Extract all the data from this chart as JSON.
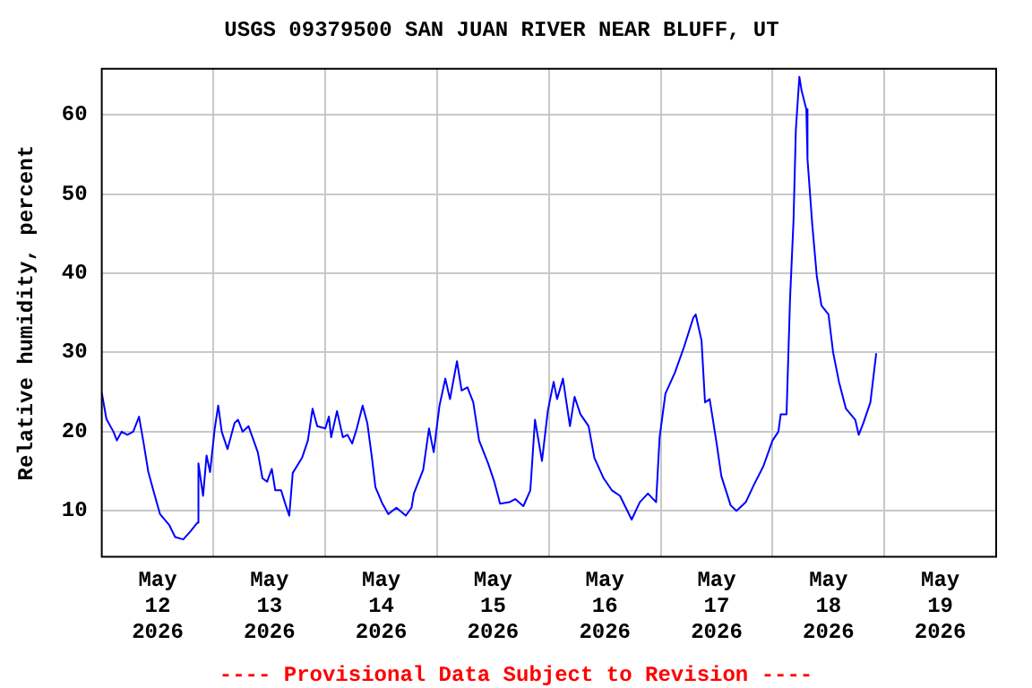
{
  "chart_data": {
    "type": "line",
    "title": "USGS 09379500 SAN JUAN RIVER NEAR BLUFF, UT",
    "ylabel": "Relative humidity, percent",
    "annotations": [
      "---- Provisional Data Subject to Revision ----"
    ],
    "x": [
      "2026-05-12T00:00",
      "2026-05-12T01:00",
      "2026-05-12T02:30",
      "2026-05-12T03:15",
      "2026-05-12T04:15",
      "2026-05-12T05:30",
      "2026-05-12T06:45",
      "2026-05-12T08:00",
      "2026-05-12T09:00",
      "2026-05-12T10:00",
      "2026-05-12T11:15",
      "2026-05-12T12:30",
      "2026-05-12T14:30",
      "2026-05-12T15:45",
      "2026-05-12T17:30",
      "2026-05-12T19:00",
      "2026-05-12T20:30",
      "2026-05-12T20:45",
      "2026-05-12T21:45",
      "2026-05-12T22:30",
      "2026-05-12T23:15",
      "2026-05-13T00:15",
      "2026-05-13T01:00",
      "2026-05-13T01:45",
      "2026-05-13T03:00",
      "2026-05-13T04:30",
      "2026-05-13T05:15",
      "2026-05-13T06:15",
      "2026-05-13T07:30",
      "2026-05-13T09:30",
      "2026-05-13T10:30",
      "2026-05-13T11:30",
      "2026-05-13T12:30",
      "2026-05-13T13:15",
      "2026-05-13T14:30",
      "2026-05-13T15:30",
      "2026-05-13T16:15",
      "2026-05-13T17:00",
      "2026-05-13T19:00",
      "2026-05-13T20:15",
      "2026-05-13T21:15",
      "2026-05-13T22:15",
      "2026-05-14T00:00",
      "2026-05-14T00:45",
      "2026-05-14T01:15",
      "2026-05-14T02:30",
      "2026-05-14T03:45",
      "2026-05-14T04:45",
      "2026-05-14T05:45",
      "2026-05-14T06:45",
      "2026-05-14T08:00",
      "2026-05-14T09:00",
      "2026-05-14T10:00",
      "2026-05-14T10:45",
      "2026-05-14T12:15",
      "2026-05-14T13:30",
      "2026-05-14T15:15",
      "2026-05-14T17:15",
      "2026-05-14T18:30",
      "2026-05-14T19:00",
      "2026-05-14T21:00",
      "2026-05-14T22:15",
      "2026-05-14T23:15",
      "2026-05-15T00:30",
      "2026-05-15T01:45",
      "2026-05-15T02:45",
      "2026-05-15T04:15",
      "2026-05-15T05:15",
      "2026-05-15T06:30",
      "2026-05-15T07:45",
      "2026-05-15T09:00",
      "2026-05-15T11:00",
      "2026-05-15T12:15",
      "2026-05-15T13:30",
      "2026-05-15T15:30",
      "2026-05-15T16:45",
      "2026-05-15T18:30",
      "2026-05-15T20:00",
      "2026-05-15T21:00",
      "2026-05-15T22:30",
      "2026-05-15T23:45",
      "2026-05-16T01:00",
      "2026-05-16T01:45",
      "2026-05-16T03:00",
      "2026-05-16T04:30",
      "2026-05-16T05:30",
      "2026-05-16T06:45",
      "2026-05-16T08:30",
      "2026-05-16T09:45",
      "2026-05-16T11:45",
      "2026-05-16T13:30",
      "2026-05-16T15:15",
      "2026-05-16T17:45",
      "2026-05-16T19:30",
      "2026-05-16T21:15",
      "2026-05-16T23:00",
      "2026-05-16T23:45",
      "2026-05-17T01:00",
      "2026-05-17T03:00",
      "2026-05-17T05:00",
      "2026-05-17T07:00",
      "2026-05-17T07:30",
      "2026-05-17T08:45",
      "2026-05-17T09:30",
      "2026-05-17T10:30",
      "2026-05-17T12:00",
      "2026-05-17T13:00",
      "2026-05-17T15:00",
      "2026-05-17T16:15",
      "2026-05-17T18:15",
      "2026-05-17T20:00",
      "2026-05-17T22:00",
      "2026-05-18T00:00",
      "2026-05-18T01:15",
      "2026-05-18T01:45",
      "2026-05-18T03:00",
      "2026-05-18T03:45",
      "2026-05-18T04:30",
      "2026-05-18T05:00",
      "2026-05-18T05:45",
      "2026-05-18T06:15",
      "2026-05-18T07:15",
      "2026-05-18T07:30",
      "2026-05-18T08:30",
      "2026-05-18T09:30",
      "2026-05-18T10:30",
      "2026-05-18T12:00",
      "2026-05-18T13:00",
      "2026-05-18T14:15",
      "2026-05-18T15:45",
      "2026-05-18T17:45",
      "2026-05-18T18:30",
      "2026-05-18T19:30",
      "2026-05-18T21:00",
      "2026-05-18T22:15"
    ],
    "series": [
      {
        "color": "#0000ff",
        "values": [
          24.9,
          21.6,
          20,
          18.9,
          20,
          19.6,
          20,
          21.9,
          18.5,
          14.9,
          12.2,
          9.6,
          8.2,
          6.7,
          6.4,
          7.4,
          8.5,
          16,
          11.9,
          17,
          14.9,
          20.4,
          23.3,
          20,
          17.8,
          21.1,
          21.5,
          20,
          20.7,
          17.4,
          14.1,
          13.7,
          15.3,
          12.6,
          12.6,
          10.7,
          9.4,
          14.8,
          16.7,
          18.9,
          22.9,
          20.7,
          20.4,
          21.9,
          19.3,
          22.6,
          19.3,
          19.6,
          18.5,
          20.4,
          23.3,
          21.1,
          16.7,
          13,
          10.9,
          9.6,
          10.4,
          9.4,
          10.4,
          12.2,
          15.2,
          20.4,
          17.4,
          23.3,
          26.7,
          24.1,
          28.9,
          25.2,
          25.6,
          23.7,
          18.9,
          15.9,
          13.7,
          10.9,
          11.1,
          11.5,
          10.6,
          12.6,
          21.5,
          16.3,
          22.6,
          26.3,
          24.1,
          26.7,
          20.7,
          24.4,
          22.2,
          20.7,
          16.7,
          14.1,
          12.6,
          11.9,
          8.9,
          11.1,
          12.2,
          11.1,
          19.3,
          24.8,
          27.4,
          30.7,
          34.4,
          34.8,
          31.5,
          23.7,
          24.1,
          18.5,
          14.4,
          10.7,
          10,
          11.1,
          13.3,
          15.6,
          18.9,
          20,
          22.2,
          22.2,
          36.7,
          46.7,
          58.1,
          64.8,
          63,
          60.7,
          54.4,
          46.3,
          39.6,
          35.9,
          34.8,
          30,
          26.3,
          22.9,
          21.5,
          19.6,
          21.1,
          23.7,
          29.9
        ]
      }
    ],
    "xlim": [
      "2026-05-12T00:00",
      "2026-05-20T00:00"
    ],
    "xticks": [
      {
        "value": "2026-05-12T12:00",
        "label": "May\n12\n2026"
      },
      {
        "value": "2026-05-13T00:00",
        "label": null
      },
      {
        "value": "2026-05-13T12:00",
        "label": "May\n13\n2026"
      },
      {
        "value": "2026-05-14T00:00",
        "label": null
      },
      {
        "value": "2026-05-14T12:00",
        "label": "May\n14\n2026"
      },
      {
        "value": "2026-05-15T00:00",
        "label": null
      },
      {
        "value": "2026-05-15T12:00",
        "label": "May\n15\n2026"
      },
      {
        "value": "2026-05-16T00:00",
        "label": null
      },
      {
        "value": "2026-05-16T12:00",
        "label": "May\n16\n2026"
      },
      {
        "value": "2026-05-17T00:00",
        "label": null
      },
      {
        "value": "2026-05-17T12:00",
        "label": "May\n17\n2026"
      },
      {
        "value": "2026-05-18T00:00",
        "label": null
      },
      {
        "value": "2026-05-18T12:00",
        "label": "May\n18\n2026"
      },
      {
        "value": "2026-05-19T00:00",
        "label": null
      },
      {
        "value": "2026-05-19T12:00",
        "label": "May\n19\n2026"
      }
    ],
    "ylim": [
      4.2,
      65.8
    ],
    "yticks": [
      10,
      20,
      30,
      40,
      50,
      60
    ],
    "grid": true,
    "legend": false,
    "marker": "none",
    "line_style": "solid"
  }
}
